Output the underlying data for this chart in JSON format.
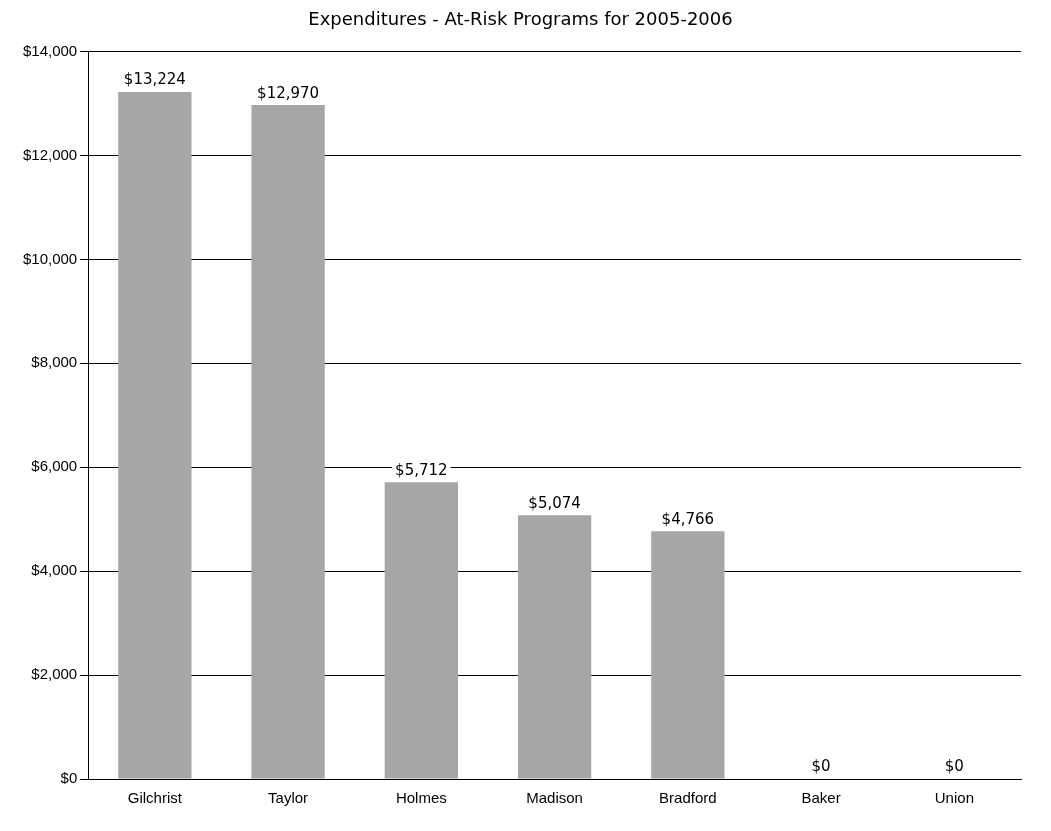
{
  "chart_data": {
    "type": "bar",
    "title": "Expenditures - At-Risk Programs for 2005-2006",
    "categories": [
      "Gilchrist",
      "Taylor",
      "Holmes",
      "Madison",
      "Bradford",
      "Baker",
      "Union"
    ],
    "values": [
      13224,
      12970,
      5712,
      5074,
      4766,
      0,
      0
    ],
    "value_labels": [
      "$13,224",
      "$12,970",
      "$5,712",
      "$5,074",
      "$4,766",
      "$0",
      "$0"
    ],
    "color": "#a6a6a6",
    "ylim": [
      0,
      14000
    ],
    "yticks": [
      {
        "value": 0,
        "label": "$0"
      },
      {
        "value": 2000,
        "label": "$2,000"
      },
      {
        "value": 4000,
        "label": "$4,000"
      },
      {
        "value": 6000,
        "label": "$6,000"
      },
      {
        "value": 8000,
        "label": "$8,000"
      },
      {
        "value": 10000,
        "label": "$10,000"
      },
      {
        "value": 12000,
        "label": "$12,000"
      },
      {
        "value": 14000,
        "label": "$14,000"
      }
    ],
    "grid": "y"
  }
}
